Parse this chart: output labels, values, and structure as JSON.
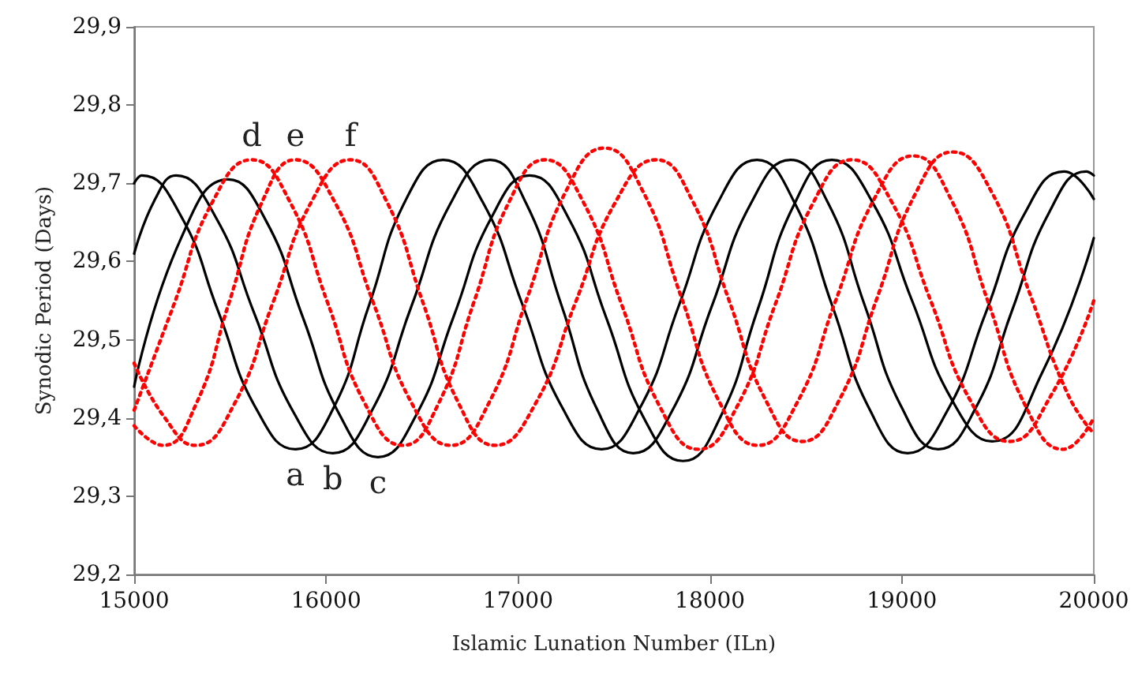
{
  "chart_data": {
    "type": "line",
    "xlabel": "Islamic Lunation Number (ILn)",
    "ylabel": "Synodic Period (Days)",
    "xlim": [
      15000,
      20000
    ],
    "xticks": [
      15000,
      16000,
      17000,
      18000,
      19000,
      20000
    ],
    "ylim": [
      29.2,
      29.9
    ],
    "yticks": [
      {
        "value": 29.2,
        "label": "29,2"
      },
      {
        "value": 29.3,
        "label": "29,3"
      },
      {
        "value": 29.4,
        "label": "29,4"
      },
      {
        "value": 29.5,
        "label": "29,5"
      },
      {
        "value": 29.6,
        "label": "29,6"
      },
      {
        "value": 29.7,
        "label": "29,7"
      },
      {
        "value": 29.8,
        "label": "29,8"
      },
      {
        "value": 29.9,
        "label": "29,9"
      }
    ],
    "grid": false,
    "marker": "none",
    "series": [
      {
        "color": "#000000",
        "line_style": "solid",
        "x": [
          15000,
          15040,
          15240,
          15440,
          15640,
          15840,
          16033,
          16225,
          16418,
          16610,
          16816,
          17023,
          17229,
          17435,
          17638,
          17840,
          18043,
          18245,
          18441,
          18638,
          18834,
          19030,
          19234,
          19438,
          19641,
          19845,
          20000
        ],
        "values": [
          29.7,
          29.71,
          29.66,
          29.535,
          29.41,
          29.36,
          29.41,
          29.545,
          29.68,
          29.73,
          29.676,
          29.545,
          29.414,
          29.36,
          29.414,
          29.545,
          29.676,
          29.73,
          29.675,
          29.543,
          29.41,
          29.355,
          29.408,
          29.535,
          29.662,
          29.715,
          29.68
        ]
      },
      {
        "color": "#000000",
        "line_style": "solid",
        "x": [
          15000,
          15110,
          15218,
          15422,
          15627,
          15831,
          16035,
          16240,
          16445,
          16650,
          16855,
          17041,
          17228,
          17414,
          17600,
          17805,
          18010,
          18215,
          18420,
          18613,
          18805,
          18998,
          19190,
          19383,
          19575,
          19768,
          19960,
          20000
        ],
        "values": [
          29.61,
          29.68,
          29.71,
          29.658,
          29.533,
          29.407,
          29.355,
          29.41,
          29.543,
          29.675,
          29.73,
          29.675,
          29.543,
          29.41,
          29.355,
          29.41,
          29.543,
          29.675,
          29.73,
          29.676,
          29.545,
          29.414,
          29.36,
          29.412,
          29.538,
          29.663,
          29.715,
          29.71
        ]
      },
      {
        "color": "#000000",
        "line_style": "solid",
        "x": [
          15000,
          15245,
          15490,
          15685,
          15880,
          16075,
          16270,
          16468,
          16665,
          16863,
          17060,
          17260,
          17460,
          17660,
          17860,
          18054,
          18248,
          18441,
          18635,
          18844,
          19053,
          19261,
          19470,
          19735,
          20000
        ],
        "values": [
          29.44,
          29.63,
          29.705,
          29.653,
          29.528,
          29.402,
          29.35,
          29.403,
          29.53,
          29.657,
          29.71,
          29.657,
          29.528,
          29.398,
          29.345,
          29.401,
          29.538,
          29.674,
          29.73,
          29.677,
          29.55,
          29.423,
          29.37,
          29.46,
          29.63
        ]
      },
      {
        "color": "#ff0000",
        "line_style": "dotted",
        "x": [
          15000,
          15207,
          15410,
          15613,
          15810,
          16007,
          16203,
          16400,
          16585,
          16770,
          16955,
          17140,
          17340,
          17540,
          17740,
          17940,
          18140,
          18340,
          18540,
          18740,
          18945,
          19150,
          19355,
          19560,
          19780,
          20000
        ],
        "values": [
          29.41,
          29.545,
          29.677,
          29.73,
          29.677,
          29.548,
          29.418,
          29.365,
          29.418,
          29.548,
          29.677,
          29.73,
          29.676,
          29.545,
          29.414,
          29.36,
          29.414,
          29.545,
          29.676,
          29.73,
          29.677,
          29.55,
          29.423,
          29.37,
          29.43,
          29.55
        ]
      },
      {
        "color": "#ff0000",
        "line_style": "dotted",
        "x": [
          15000,
          15150,
          15323,
          15495,
          15668,
          15840,
          16043,
          16245,
          16448,
          16650,
          16850,
          17050,
          17250,
          17450,
          17650,
          17850,
          18050,
          18250,
          18453,
          18655,
          18858,
          19060,
          19255,
          19450,
          19645,
          19840,
          20000
        ],
        "values": [
          29.39,
          29.365,
          29.418,
          29.548,
          29.677,
          29.73,
          29.677,
          29.548,
          29.418,
          29.365,
          29.42,
          29.555,
          29.69,
          29.745,
          29.69,
          29.555,
          29.42,
          29.365,
          29.419,
          29.55,
          29.681,
          29.735,
          29.68,
          29.548,
          29.415,
          29.36,
          29.4
        ]
      },
      {
        "color": "#ff0000",
        "line_style": "dotted",
        "x": [
          15000,
          15160,
          15320,
          15522,
          15724,
          15925,
          16127,
          16315,
          16504,
          16692,
          16880,
          17090,
          17300,
          17510,
          17720,
          17910,
          18100,
          18290,
          18480,
          18676,
          18873,
          19069,
          19265,
          19465,
          19665,
          19865,
          20000
        ],
        "values": [
          29.47,
          29.4,
          29.365,
          29.418,
          29.548,
          29.677,
          29.73,
          29.677,
          29.548,
          29.418,
          29.365,
          29.418,
          29.548,
          29.677,
          29.73,
          29.677,
          29.55,
          29.423,
          29.37,
          29.424,
          29.555,
          29.686,
          29.74,
          29.69,
          29.56,
          29.43,
          29.38
        ]
      }
    ],
    "annotations": [
      {
        "text": "a",
        "x": 15840,
        "y": 29.36
      },
      {
        "text": "b",
        "x": 16035,
        "y": 29.355
      },
      {
        "text": "c",
        "x": 16270,
        "y": 29.35
      },
      {
        "text": "d",
        "x": 15613,
        "y": 29.73
      },
      {
        "text": "e",
        "x": 15840,
        "y": 29.73
      },
      {
        "text": "f",
        "x": 16127,
        "y": 29.73
      }
    ]
  }
}
